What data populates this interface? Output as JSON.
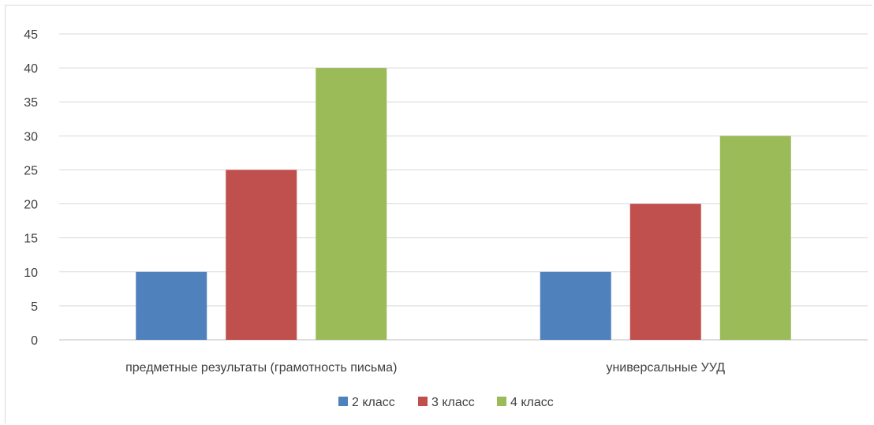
{
  "chart_data": {
    "type": "bar",
    "title": "",
    "xlabel": "",
    "ylabel": "",
    "categories": [
      "предметные результаты (грамотность письма)",
      "универсальные УУД"
    ],
    "series": [
      {
        "name": "2 класс",
        "color": "#4f81bd",
        "values": [
          10,
          10
        ]
      },
      {
        "name": "3 класс",
        "color": "#c0504d",
        "values": [
          25,
          20
        ]
      },
      {
        "name": "4 класс",
        "color": "#9bbb59",
        "values": [
          40,
          30
        ]
      }
    ],
    "ylim": [
      0,
      45
    ],
    "yticks": [
      "0",
      "5",
      "10",
      "15",
      "20",
      "25",
      "30",
      "35",
      "40",
      "45"
    ],
    "grid": true,
    "legend": "bottom"
  }
}
